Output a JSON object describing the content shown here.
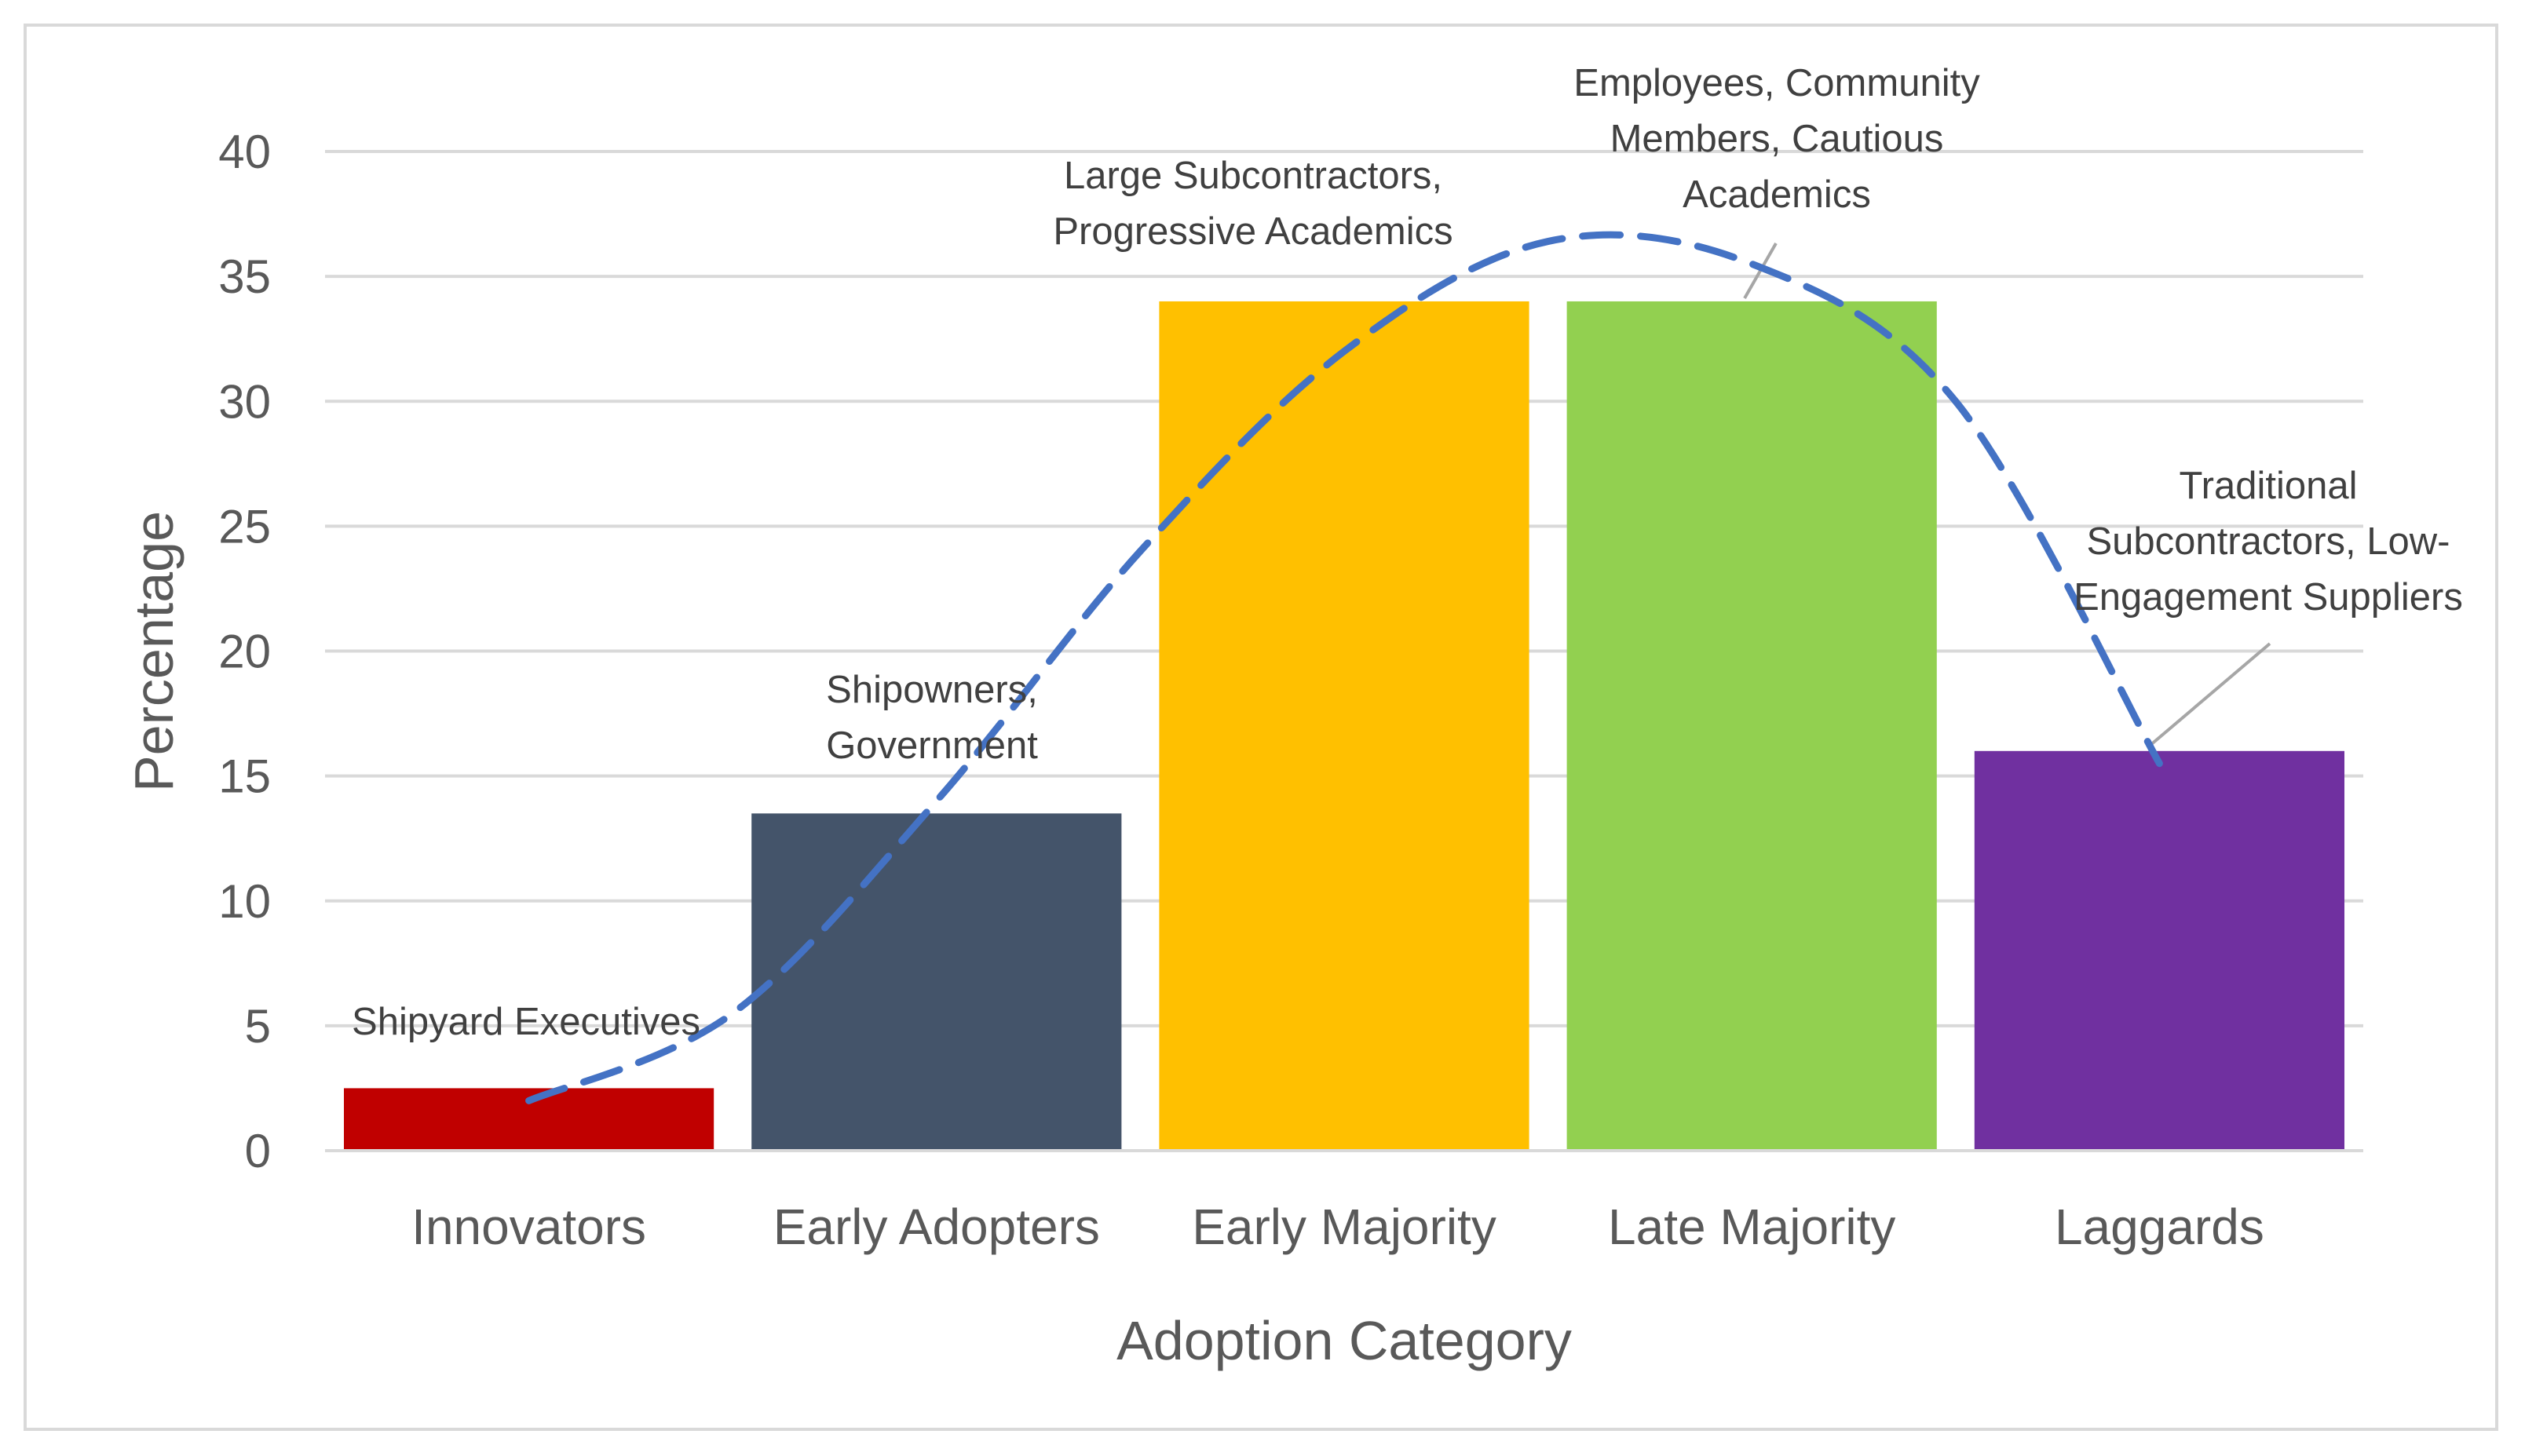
{
  "chart_data": {
    "type": "bar",
    "title": "",
    "xlabel": "Adoption Category",
    "ylabel": "Percentage",
    "ylim": [
      0,
      40
    ],
    "yticks": [
      0,
      5,
      10,
      15,
      20,
      25,
      30,
      35,
      40
    ],
    "grid": true,
    "categories": [
      "Innovators",
      "Early Adopters",
      "Early Majority",
      "Late Majority",
      "Laggards"
    ],
    "values": [
      2.5,
      13.5,
      34,
      34,
      16
    ],
    "colors": [
      "#c00000",
      "#44546a",
      "#ffc000",
      "#92d050",
      "#7030a0"
    ],
    "annotations": [
      {
        "category": "Innovators",
        "lines": [
          "Shipyard Executives"
        ]
      },
      {
        "category": "Early Adopters",
        "lines": [
          "Shipowners,",
          "Government"
        ]
      },
      {
        "category": "Early Majority",
        "lines": [
          "Large Subcontractors,",
          "Progressive Academics"
        ]
      },
      {
        "category": "Late Majority",
        "lines": [
          "Employees, Community",
          "Members, Cautious",
          "Academics"
        ]
      },
      {
        "category": "Laggards",
        "lines": [
          "Traditional",
          "Subcontractors, Low-",
          "Engagement Suppliers"
        ]
      }
    ],
    "trend_line": {
      "style": "dashed",
      "color": "#4472c4",
      "points": [
        {
          "x": 0,
          "y": 2
        },
        {
          "x": 0.5,
          "y": 5.5
        },
        {
          "x": 1,
          "y": 14
        },
        {
          "x": 1.5,
          "y": 24
        },
        {
          "x": 2,
          "y": 32
        },
        {
          "x": 2.5,
          "y": 36.4
        },
        {
          "x": 3,
          "y": 35.5
        },
        {
          "x": 3.5,
          "y": 30
        },
        {
          "x": 4,
          "y": 15.5
        }
      ]
    }
  }
}
